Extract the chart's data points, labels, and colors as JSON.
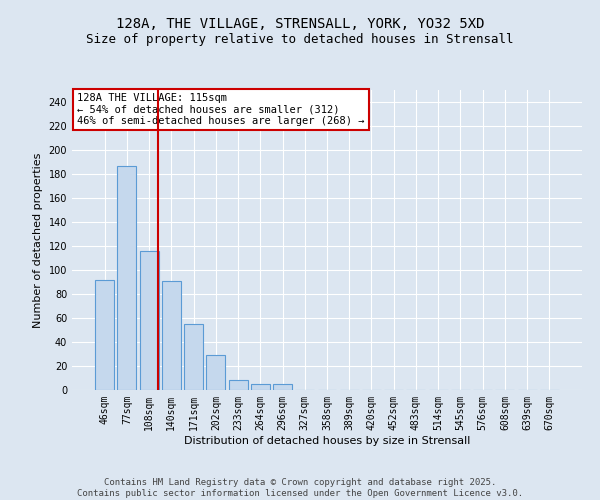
{
  "title": "128A, THE VILLAGE, STRENSALL, YORK, YO32 5XD",
  "subtitle": "Size of property relative to detached houses in Strensall",
  "xlabel": "Distribution of detached houses by size in Strensall",
  "ylabel": "Number of detached properties",
  "categories": [
    "46sqm",
    "77sqm",
    "108sqm",
    "140sqm",
    "171sqm",
    "202sqm",
    "233sqm",
    "264sqm",
    "296sqm",
    "327sqm",
    "358sqm",
    "389sqm",
    "420sqm",
    "452sqm",
    "483sqm",
    "514sqm",
    "545sqm",
    "576sqm",
    "608sqm",
    "639sqm",
    "670sqm"
  ],
  "values": [
    92,
    187,
    116,
    91,
    55,
    29,
    8,
    5,
    5,
    0,
    0,
    0,
    0,
    0,
    0,
    0,
    0,
    0,
    0,
    0,
    0
  ],
  "bar_color": "#c5d8ed",
  "bar_edge_color": "#5b9bd5",
  "property_line_x": 2.4,
  "annotation_text": "128A THE VILLAGE: 115sqm\n← 54% of detached houses are smaller (312)\n46% of semi-detached houses are larger (268) →",
  "annotation_box_color": "#ffffff",
  "annotation_box_edge_color": "#cc0000",
  "red_line_color": "#cc0000",
  "background_color": "#dce6f1",
  "plot_background_color": "#dce6f1",
  "grid_color": "#ffffff",
  "footer_text": "Contains HM Land Registry data © Crown copyright and database right 2025.\nContains public sector information licensed under the Open Government Licence v3.0.",
  "ylim": [
    0,
    250
  ],
  "yticks": [
    0,
    20,
    40,
    60,
    80,
    100,
    120,
    140,
    160,
    180,
    200,
    220,
    240
  ],
  "title_fontsize": 10,
  "subtitle_fontsize": 9,
  "axis_label_fontsize": 8,
  "tick_fontsize": 7,
  "annotation_fontsize": 7.5,
  "footer_fontsize": 6.5
}
